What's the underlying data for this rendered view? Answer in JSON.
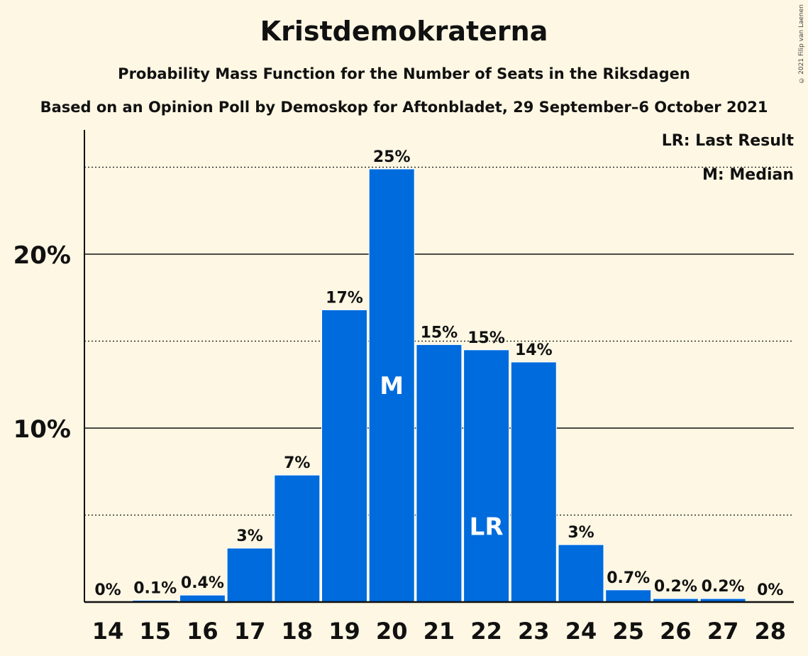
{
  "title": "Kristdemokraterna",
  "subtitle": "Probability Mass Function for the Number of Seats in the Riksdagen",
  "subtitle2": "Based on an Opinion Poll by Demoskop for Aftonbladet, 29 September–6 October 2021",
  "copyright": "© 2021 Filip van Laenen",
  "legend": {
    "last_result": "LR: Last Result",
    "median": "M: Median"
  },
  "colors": {
    "bar": "#006bdc",
    "background": "#fdf7e3",
    "axis": "#111111"
  },
  "chart_data": {
    "type": "bar",
    "categories": [
      "14",
      "15",
      "16",
      "17",
      "18",
      "19",
      "20",
      "21",
      "22",
      "23",
      "24",
      "25",
      "26",
      "27",
      "28"
    ],
    "values": [
      0,
      0.1,
      0.4,
      3.1,
      7.3,
      16.8,
      24.9,
      14.8,
      14.5,
      13.8,
      3.3,
      0.7,
      0.2,
      0.2,
      0
    ],
    "labels": [
      "0%",
      "0.1%",
      "0.4%",
      "3%",
      "7%",
      "17%",
      "25%",
      "15%",
      "15%",
      "14%",
      "3%",
      "0.7%",
      "0.2%",
      "0.2%",
      "0%"
    ],
    "yticks": [
      {
        "value": 10,
        "label": "10%"
      },
      {
        "value": 20,
        "label": "20%"
      }
    ],
    "dotted_gridlines": [
      5,
      15,
      25
    ],
    "ylim": [
      0,
      27
    ],
    "markers": [
      {
        "category": "20",
        "text": "M"
      },
      {
        "category": "22",
        "text": "LR"
      }
    ],
    "legend_position": "top-right"
  }
}
